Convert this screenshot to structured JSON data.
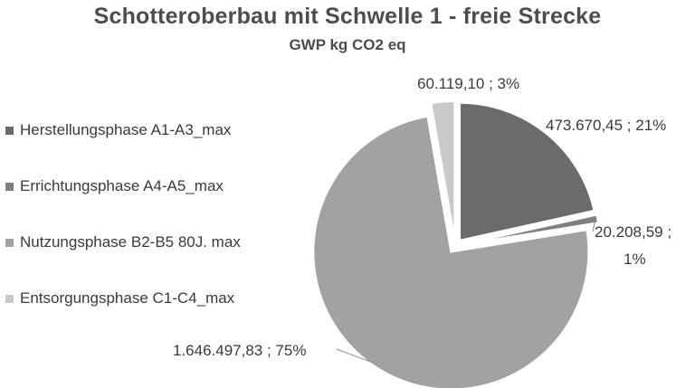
{
  "chart_data": {
    "type": "pie",
    "title": "Schotteroberbau mit Schwelle 1 - freie Strecke",
    "subtitle": "GWP kg CO2 eq",
    "legend_position": "left",
    "series": [
      {
        "name": "Herstellungsphase A1-A3_max",
        "value": 473670.45,
        "percent": 21,
        "label": "473.670,45 ; 21%",
        "color": "#6b6b6b"
      },
      {
        "name": "Errichtungsphase A4-A5_max",
        "value": 20208.59,
        "percent": 1,
        "label_line1": "20.208,59 ;",
        "label_line2": "1%",
        "color": "#7f7f7f"
      },
      {
        "name": "Nutzungsphase B2-B5 80J. max",
        "value": 1646497.83,
        "percent": 75,
        "label": "1.646.497,83 ; 75%",
        "color": "#a2a2a2"
      },
      {
        "name": "Entsorgungsphase C1-C4_max",
        "value": 60119.1,
        "percent": 3,
        "label": "60.119,10 ; 3%",
        "color": "#c9c9c9"
      }
    ]
  }
}
